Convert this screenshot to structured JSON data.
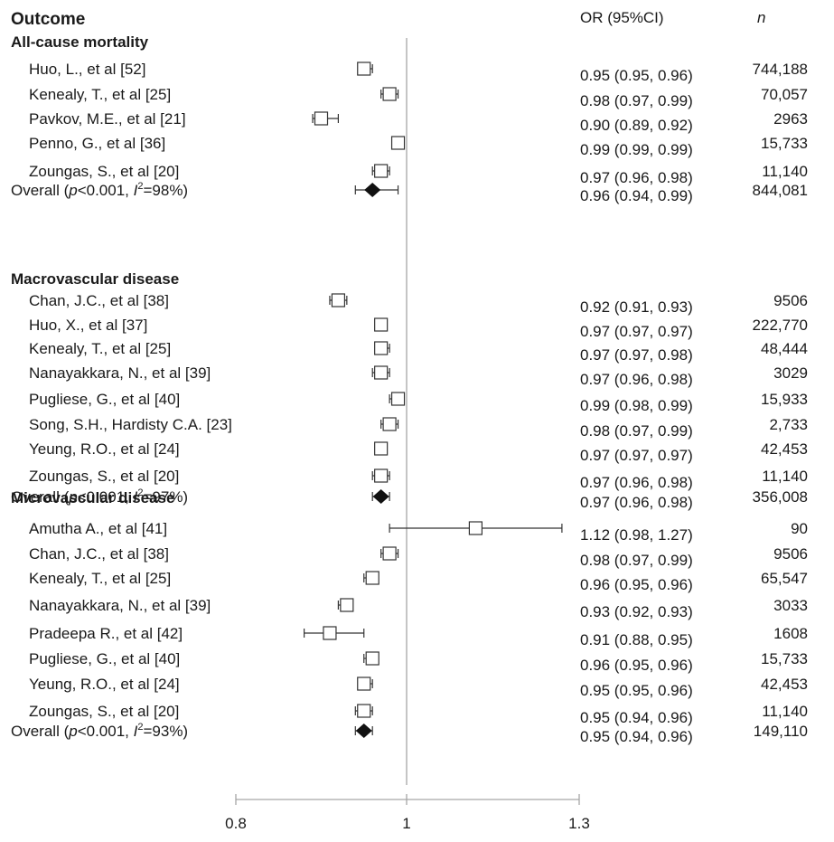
{
  "header": {
    "outcome": "Outcome",
    "or_ci": "OR (95%CI)",
    "n": "n"
  },
  "chart_data": {
    "type": "forest",
    "xlim": [
      0.8,
      1.3
    ],
    "xticks": [
      "0.8",
      "1",
      "1.3"
    ],
    "reference_line": 1,
    "sections": [
      {
        "title": "All-cause mortality",
        "rows": [
          {
            "study": "Huo, L., et al [52]",
            "or": 0.95,
            "lo": 0.95,
            "hi": 0.96,
            "ci_text": "0.95 (0.95, 0.96)",
            "n": "744,188"
          },
          {
            "study": "Kenealy, T., et al [25]",
            "or": 0.98,
            "lo": 0.97,
            "hi": 0.99,
            "ci_text": "0.98 (0.97, 0.99)",
            "n": "70,057"
          },
          {
            "study": "Pavkov, M.E., et al [21]",
            "or": 0.9,
            "lo": 0.89,
            "hi": 0.92,
            "ci_text": "0.90 (0.89, 0.92)",
            "n": "2963"
          },
          {
            "study": "Penno, G., et al [36]",
            "or": 0.99,
            "lo": 0.99,
            "hi": 0.99,
            "ci_text": "0.99 (0.99, 0.99)",
            "n": "15,733"
          },
          {
            "study": "Zoungas, S., et al [20]",
            "or": 0.97,
            "lo": 0.96,
            "hi": 0.98,
            "ci_text": "0.97 (0.96, 0.98)",
            "n": "11,140"
          }
        ],
        "overall": {
          "pre": "Overall (",
          "p": "p",
          "mid": "<0.001, ",
          "i": "I",
          "sup": "2",
          "post": "=98%)",
          "or": 0.96,
          "lo": 0.94,
          "hi": 0.99,
          "ci_text": "0.96 (0.94, 0.99)",
          "n": "844,081"
        }
      },
      {
        "title": "Macrovascular disease",
        "rows": [
          {
            "study": "Chan, J.C., et al [38]",
            "or": 0.92,
            "lo": 0.91,
            "hi": 0.93,
            "ci_text": "0.92 (0.91, 0.93)",
            "n": "9506"
          },
          {
            "study": "Huo, X., et al [37]",
            "or": 0.97,
            "lo": 0.97,
            "hi": 0.97,
            "ci_text": "0.97 (0.97, 0.97)",
            "n": "222,770"
          },
          {
            "study": "Kenealy, T., et al [25]",
            "or": 0.97,
            "lo": 0.97,
            "hi": 0.98,
            "ci_text": "0.97 (0.97, 0.98)",
            "n": "48,444"
          },
          {
            "study": "Nanayakkara, N., et al [39]",
            "or": 0.97,
            "lo": 0.96,
            "hi": 0.98,
            "ci_text": "0.97 (0.96, 0.98)",
            "n": "3029"
          },
          {
            "study": "Pugliese, G., et al [40]",
            "or": 0.99,
            "lo": 0.98,
            "hi": 0.99,
            "ci_text": "0.99 (0.98, 0.99)",
            "n": "15,933"
          },
          {
            "study": "Song, S.H., Hardisty C.A. [23]",
            "or": 0.98,
            "lo": 0.97,
            "hi": 0.99,
            "ci_text": "0.98 (0.97, 0.99)",
            "n": "2,733"
          },
          {
            "study": "Yeung, R.O., et al [24]",
            "or": 0.97,
            "lo": 0.97,
            "hi": 0.97,
            "ci_text": "0.97 (0.97, 0.97)",
            "n": "42,453"
          },
          {
            "study": "Zoungas, S., et al [20]",
            "or": 0.97,
            "lo": 0.96,
            "hi": 0.98,
            "ci_text": "0.97 (0.96, 0.98)",
            "n": "11,140"
          }
        ],
        "overall": {
          "pre": "Overall (",
          "p": "p",
          "mid": "<0.001, ",
          "i": "I",
          "sup": "2",
          "post": "=97%)",
          "or": 0.97,
          "lo": 0.96,
          "hi": 0.98,
          "ci_text": "0.97 (0.96, 0.98)",
          "n": "356,008"
        }
      },
      {
        "title": "Microvascular disease",
        "rows": [
          {
            "study": "Amutha A., et al [41]",
            "or": 1.12,
            "lo": 0.98,
            "hi": 1.27,
            "ci_text": "1.12 (0.98, 1.27)",
            "n": "90"
          },
          {
            "study": "Chan, J.C., et al [38]",
            "or": 0.98,
            "lo": 0.97,
            "hi": 0.99,
            "ci_text": "0.98 (0.97, 0.99)",
            "n": "9506"
          },
          {
            "study": "Kenealy, T., et al [25]",
            "or": 0.96,
            "lo": 0.95,
            "hi": 0.96,
            "ci_text": "0.96 (0.95, 0.96)",
            "n": "65,547"
          },
          {
            "study": "Nanayakkara, N., et al [39]",
            "or": 0.93,
            "lo": 0.92,
            "hi": 0.93,
            "ci_text": "0.93 (0.92, 0.93)",
            "n": "3033"
          },
          {
            "study": "Pradeepa R., et al [42]",
            "or": 0.91,
            "lo": 0.88,
            "hi": 0.95,
            "ci_text": "0.91 (0.88, 0.95)",
            "n": "1608"
          },
          {
            "study": "Pugliese, G., et al [40]",
            "or": 0.96,
            "lo": 0.95,
            "hi": 0.96,
            "ci_text": "0.96 (0.95, 0.96)",
            "n": "15,733"
          },
          {
            "study": "Yeung, R.O., et al [24]",
            "or": 0.95,
            "lo": 0.95,
            "hi": 0.96,
            "ci_text": "0.95 (0.95, 0.96)",
            "n": "42,453"
          },
          {
            "study": "Zoungas, S., et al [20]",
            "or": 0.95,
            "lo": 0.94,
            "hi": 0.96,
            "ci_text": "0.95 (0.94, 0.96)",
            "n": "11,140"
          }
        ],
        "overall": {
          "pre": "Overall (",
          "p": "p",
          "mid": "<0.001, ",
          "i": "I",
          "sup": "2",
          "post": "=93%)",
          "or": 0.95,
          "lo": 0.94,
          "hi": 0.96,
          "ci_text": "0.95 (0.94, 0.96)",
          "n": "149,110"
        }
      }
    ]
  }
}
